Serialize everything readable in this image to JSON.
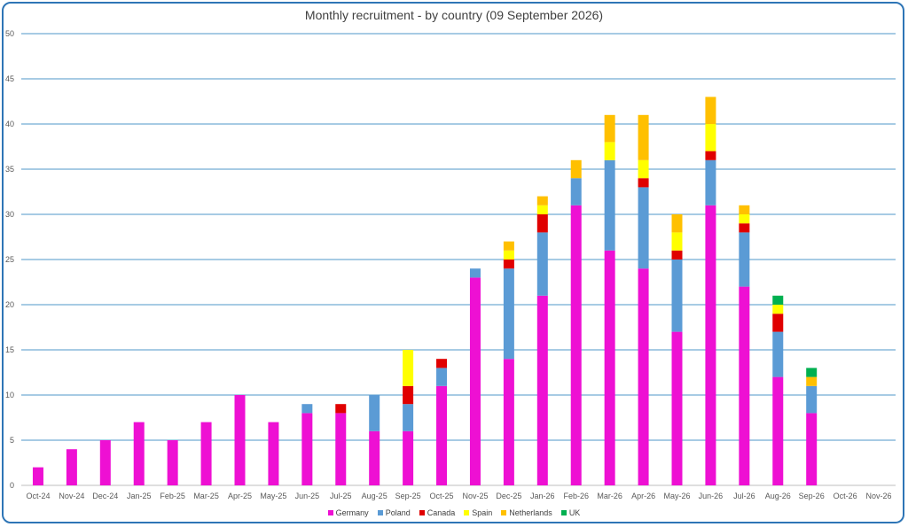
{
  "chart_data": {
    "type": "bar",
    "stacked": true,
    "title": "Monthly recruitment - by country (09 September 2026)",
    "xlabel": "",
    "ylabel": "",
    "ylim": [
      0,
      50
    ],
    "yticks": [
      0,
      5,
      10,
      15,
      20,
      25,
      30,
      35,
      40,
      45,
      50
    ],
    "grid": true,
    "legend_position": "bottom",
    "categories": [
      "Oct-24",
      "Nov-24",
      "Dec-24",
      "Jan-25",
      "Feb-25",
      "Mar-25",
      "Apr-25",
      "May-25",
      "Jun-25",
      "Jul-25",
      "Aug-25",
      "Sep-25",
      "Oct-25",
      "Nov-25",
      "Dec-25",
      "Jan-26",
      "Feb-26",
      "Mar-26",
      "Apr-26",
      "May-26",
      "Jun-26",
      "Jul-26",
      "Aug-26",
      "Sep-26",
      "Oct-26",
      "Nov-26"
    ],
    "series": [
      {
        "name": "Germany",
        "color": "#ee10d3",
        "values": [
          2,
          4,
          5,
          7,
          5,
          7,
          10,
          7,
          8,
          8,
          6,
          6,
          11,
          23,
          14,
          21,
          31,
          26,
          24,
          17,
          31,
          22,
          12,
          8,
          0,
          0
        ]
      },
      {
        "name": "Poland",
        "color": "#5b9bd5",
        "values": [
          0,
          0,
          0,
          0,
          0,
          0,
          0,
          0,
          1,
          0,
          4,
          3,
          2,
          1,
          10,
          7,
          3,
          10,
          9,
          8,
          5,
          6,
          5,
          3,
          0,
          0
        ]
      },
      {
        "name": "Canada",
        "color": "#e00000",
        "values": [
          0,
          0,
          0,
          0,
          0,
          0,
          0,
          0,
          0,
          1,
          0,
          2,
          1,
          0,
          1,
          2,
          0,
          0,
          1,
          1,
          1,
          1,
          2,
          0,
          0,
          0
        ]
      },
      {
        "name": "Spain",
        "color": "#ffff00",
        "values": [
          0,
          0,
          0,
          0,
          0,
          0,
          0,
          0,
          0,
          0,
          0,
          4,
          0,
          0,
          1,
          1,
          0,
          2,
          2,
          2,
          3,
          1,
          1,
          0,
          0,
          0
        ]
      },
      {
        "name": "Netherlands",
        "color": "#ffc000",
        "values": [
          0,
          0,
          0,
          0,
          0,
          0,
          0,
          0,
          0,
          0,
          0,
          0,
          0,
          0,
          1,
          1,
          2,
          3,
          5,
          2,
          3,
          1,
          0,
          1,
          0,
          0
        ]
      },
      {
        "name": "UK",
        "color": "#00b050",
        "values": [
          0,
          0,
          0,
          0,
          0,
          0,
          0,
          0,
          0,
          0,
          0,
          0,
          0,
          0,
          0,
          0,
          0,
          0,
          0,
          0,
          0,
          0,
          1,
          1,
          0,
          0
        ]
      }
    ]
  }
}
